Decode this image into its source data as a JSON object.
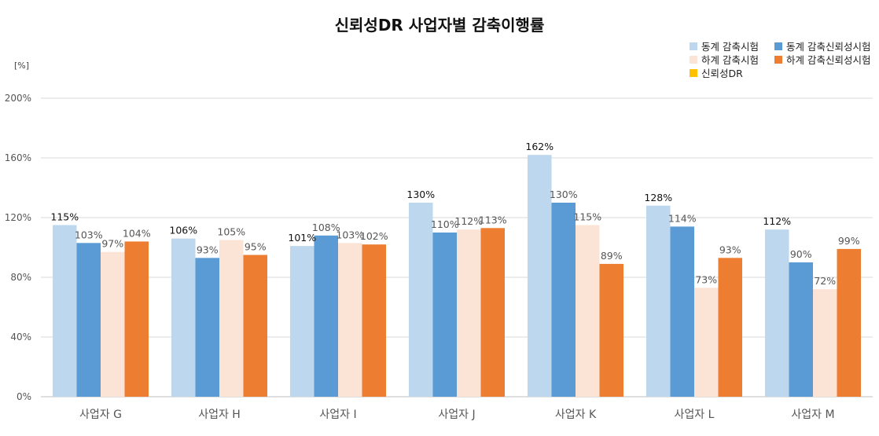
{
  "chart_data": {
    "type": "bar",
    "title": "신뢰성DR 사업자별 감축이행률",
    "unit_label": "[%]",
    "ylim": [
      0,
      200
    ],
    "yticks": [
      "0%",
      "40%",
      "80%",
      "120%",
      "160%",
      "200%"
    ],
    "ytick_values": [
      0,
      40,
      80,
      120,
      160,
      200
    ],
    "grid": true,
    "legend_position": "top-right",
    "categories": [
      "사업자 G",
      "사업자 H",
      "사업자 I",
      "사업자 J",
      "사업자 K",
      "사업자 L",
      "사업자 M"
    ],
    "series": [
      {
        "name": "동계 감축시험",
        "color": "#BDD7EE",
        "label_color": "#111111",
        "values": [
          115,
          106,
          101,
          130,
          162,
          128,
          112
        ],
        "labels": [
          "115%",
          "106%",
          "101%",
          "130%",
          "162%",
          "128%",
          "112%"
        ]
      },
      {
        "name": "동계 감축신뢰성시험",
        "color": "#5B9BD5",
        "label_color": "#555555",
        "values": [
          103,
          93,
          108,
          110,
          130,
          114,
          90
        ],
        "labels": [
          "103%",
          "93%",
          "108%",
          "110%",
          "130%",
          "114%",
          "90%"
        ]
      },
      {
        "name": "하계 감축시험",
        "color": "#FBE3D6",
        "label_color": "#555555",
        "values": [
          97,
          105,
          103,
          112,
          115,
          73,
          72
        ],
        "labels": [
          "97%",
          "105%",
          "103%",
          "112%",
          "115%",
          "73%",
          "72%"
        ]
      },
      {
        "name": "하계 감축신뢰성시험",
        "color": "#ED7D31",
        "label_color": "#555555",
        "values": [
          104,
          95,
          102,
          113,
          89,
          93,
          99
        ],
        "labels": [
          "104%",
          "95%",
          "102%",
          "113%",
          "89%",
          "93%",
          "99%"
        ]
      }
    ],
    "legend": [
      {
        "name": "동계 감축시험",
        "color": "#BDD7EE"
      },
      {
        "name": "동계 감축신뢰성시험",
        "color": "#5B9BD5"
      },
      {
        "name": "하계 감축시험",
        "color": "#FBE3D6"
      },
      {
        "name": "하계 감축신뢰성시험",
        "color": "#ED7D31"
      },
      {
        "name": "신뢰성DR",
        "color": "#FFC000"
      }
    ]
  }
}
